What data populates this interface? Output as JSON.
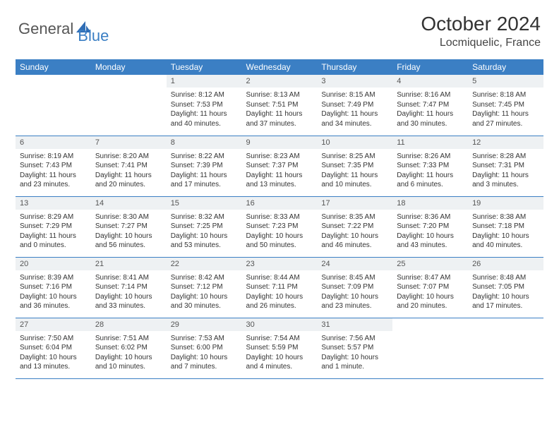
{
  "logo": {
    "part1": "General",
    "part2": "Blue"
  },
  "title": {
    "month": "October 2024",
    "location": "Locmiquelic, France"
  },
  "colors": {
    "header_bg": "#3b7fc4",
    "header_text": "#ffffff",
    "daynum_bg": "#eef1f3",
    "row_divider": "#3b7fc4",
    "logo_gray": "#565656",
    "logo_blue": "#3b7fc4"
  },
  "weekdays": [
    "Sunday",
    "Monday",
    "Tuesday",
    "Wednesday",
    "Thursday",
    "Friday",
    "Saturday"
  ],
  "lead_blanks": 2,
  "days": [
    {
      "n": 1,
      "sr": "8:12 AM",
      "ss": "7:53 PM",
      "dl": "11 hours and 40 minutes."
    },
    {
      "n": 2,
      "sr": "8:13 AM",
      "ss": "7:51 PM",
      "dl": "11 hours and 37 minutes."
    },
    {
      "n": 3,
      "sr": "8:15 AM",
      "ss": "7:49 PM",
      "dl": "11 hours and 34 minutes."
    },
    {
      "n": 4,
      "sr": "8:16 AM",
      "ss": "7:47 PM",
      "dl": "11 hours and 30 minutes."
    },
    {
      "n": 5,
      "sr": "8:18 AM",
      "ss": "7:45 PM",
      "dl": "11 hours and 27 minutes."
    },
    {
      "n": 6,
      "sr": "8:19 AM",
      "ss": "7:43 PM",
      "dl": "11 hours and 23 minutes."
    },
    {
      "n": 7,
      "sr": "8:20 AM",
      "ss": "7:41 PM",
      "dl": "11 hours and 20 minutes."
    },
    {
      "n": 8,
      "sr": "8:22 AM",
      "ss": "7:39 PM",
      "dl": "11 hours and 17 minutes."
    },
    {
      "n": 9,
      "sr": "8:23 AM",
      "ss": "7:37 PM",
      "dl": "11 hours and 13 minutes."
    },
    {
      "n": 10,
      "sr": "8:25 AM",
      "ss": "7:35 PM",
      "dl": "11 hours and 10 minutes."
    },
    {
      "n": 11,
      "sr": "8:26 AM",
      "ss": "7:33 PM",
      "dl": "11 hours and 6 minutes."
    },
    {
      "n": 12,
      "sr": "8:28 AM",
      "ss": "7:31 PM",
      "dl": "11 hours and 3 minutes."
    },
    {
      "n": 13,
      "sr": "8:29 AM",
      "ss": "7:29 PM",
      "dl": "11 hours and 0 minutes."
    },
    {
      "n": 14,
      "sr": "8:30 AM",
      "ss": "7:27 PM",
      "dl": "10 hours and 56 minutes."
    },
    {
      "n": 15,
      "sr": "8:32 AM",
      "ss": "7:25 PM",
      "dl": "10 hours and 53 minutes."
    },
    {
      "n": 16,
      "sr": "8:33 AM",
      "ss": "7:23 PM",
      "dl": "10 hours and 50 minutes."
    },
    {
      "n": 17,
      "sr": "8:35 AM",
      "ss": "7:22 PM",
      "dl": "10 hours and 46 minutes."
    },
    {
      "n": 18,
      "sr": "8:36 AM",
      "ss": "7:20 PM",
      "dl": "10 hours and 43 minutes."
    },
    {
      "n": 19,
      "sr": "8:38 AM",
      "ss": "7:18 PM",
      "dl": "10 hours and 40 minutes."
    },
    {
      "n": 20,
      "sr": "8:39 AM",
      "ss": "7:16 PM",
      "dl": "10 hours and 36 minutes."
    },
    {
      "n": 21,
      "sr": "8:41 AM",
      "ss": "7:14 PM",
      "dl": "10 hours and 33 minutes."
    },
    {
      "n": 22,
      "sr": "8:42 AM",
      "ss": "7:12 PM",
      "dl": "10 hours and 30 minutes."
    },
    {
      "n": 23,
      "sr": "8:44 AM",
      "ss": "7:11 PM",
      "dl": "10 hours and 26 minutes."
    },
    {
      "n": 24,
      "sr": "8:45 AM",
      "ss": "7:09 PM",
      "dl": "10 hours and 23 minutes."
    },
    {
      "n": 25,
      "sr": "8:47 AM",
      "ss": "7:07 PM",
      "dl": "10 hours and 20 minutes."
    },
    {
      "n": 26,
      "sr": "8:48 AM",
      "ss": "7:05 PM",
      "dl": "10 hours and 17 minutes."
    },
    {
      "n": 27,
      "sr": "7:50 AM",
      "ss": "6:04 PM",
      "dl": "10 hours and 13 minutes."
    },
    {
      "n": 28,
      "sr": "7:51 AM",
      "ss": "6:02 PM",
      "dl": "10 hours and 10 minutes."
    },
    {
      "n": 29,
      "sr": "7:53 AM",
      "ss": "6:00 PM",
      "dl": "10 hours and 7 minutes."
    },
    {
      "n": 30,
      "sr": "7:54 AM",
      "ss": "5:59 PM",
      "dl": "10 hours and 4 minutes."
    },
    {
      "n": 31,
      "sr": "7:56 AM",
      "ss": "5:57 PM",
      "dl": "10 hours and 1 minute."
    }
  ],
  "labels": {
    "sunrise": "Sunrise:",
    "sunset": "Sunset:",
    "daylight": "Daylight:"
  }
}
